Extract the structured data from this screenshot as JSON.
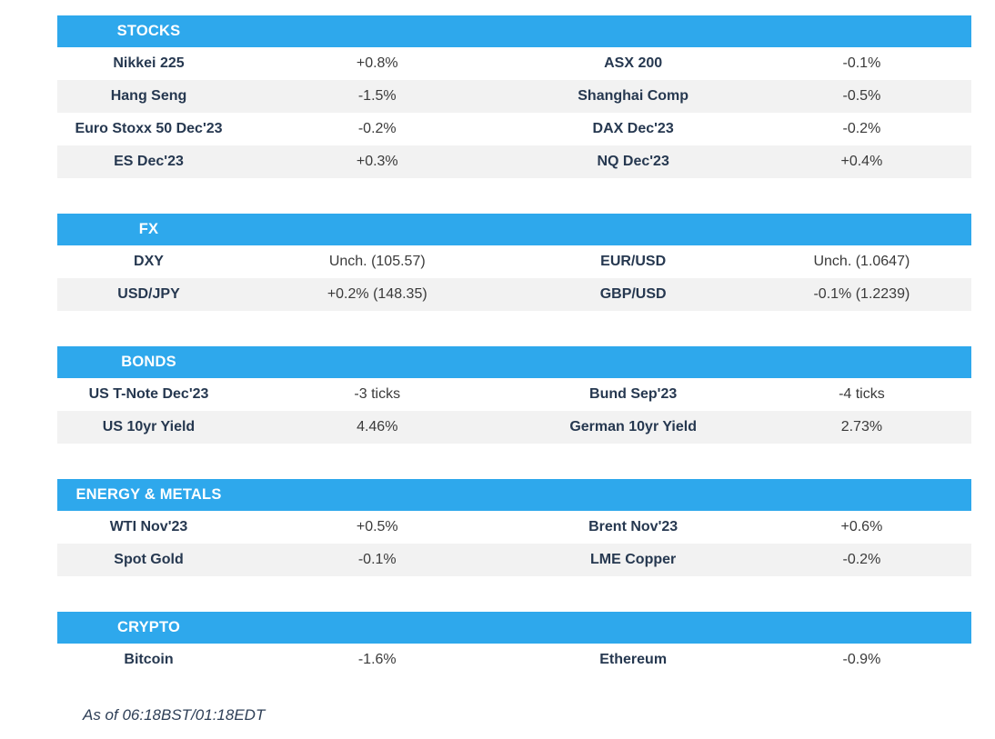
{
  "colors": {
    "accent_blue": "#2EA8EC",
    "row_stripe": "#F2F2F2",
    "label_text": "#263850",
    "value_text": "#3A3A3A"
  },
  "sections": [
    {
      "title": "STOCKS",
      "slug": "stocks",
      "rows": [
        [
          "Nikkei 225",
          "+0.8%",
          "ASX 200",
          "-0.1%"
        ],
        [
          "Hang Seng",
          "-1.5%",
          "Shanghai Comp",
          "-0.5%"
        ],
        [
          "Euro Stoxx 50 Dec'23",
          "-0.2%",
          "DAX Dec'23",
          "-0.2%"
        ],
        [
          "ES Dec'23",
          "+0.3%",
          "NQ Dec'23",
          "+0.4%"
        ]
      ]
    },
    {
      "title": "FX",
      "slug": "fx",
      "rows": [
        [
          "DXY",
          "Unch. (105.57)",
          "EUR/USD",
          "Unch. (1.0647)"
        ],
        [
          "USD/JPY",
          "+0.2% (148.35)",
          "GBP/USD",
          "-0.1% (1.2239)"
        ]
      ]
    },
    {
      "title": "BONDS",
      "slug": "bonds",
      "rows": [
        [
          "US T-Note Dec'23",
          "-3 ticks",
          "Bund Sep'23",
          "-4 ticks"
        ],
        [
          "US 10yr Yield",
          "4.46%",
          "German 10yr Yield",
          "2.73%"
        ]
      ]
    },
    {
      "title": "ENERGY & METALS",
      "slug": "energy-metals",
      "rows": [
        [
          "WTI Nov'23",
          "+0.5%",
          "Brent Nov'23",
          "+0.6%"
        ],
        [
          "Spot Gold",
          "-0.1%",
          "LME Copper",
          "-0.2%"
        ]
      ]
    },
    {
      "title": "CRYPTO",
      "slug": "crypto",
      "rows": [
        [
          "Bitcoin",
          "-1.6%",
          "Ethereum",
          "-0.9%"
        ]
      ]
    }
  ],
  "footer": {
    "as_of": "As of 06:18BST/01:18EDT"
  }
}
